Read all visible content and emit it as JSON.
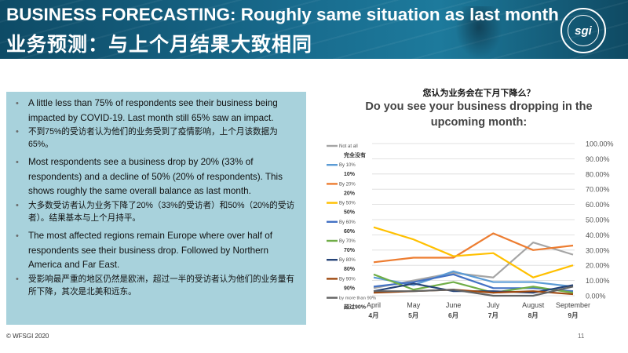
{
  "header": {
    "title_en": "BUSINESS FORECASTING: Roughly same situation as last month",
    "title_zh": "业务预测：与上个月结果大致相同",
    "logo_text": "sgi",
    "logo_icon": "wfsgi-globe-logo"
  },
  "bullets": [
    {
      "lang": "en",
      "text": "A little less than 75% of respondents see their business being impacted by COVID-19. Last month still 65% saw an impact."
    },
    {
      "lang": "zh",
      "text": "不到75%的受访者认为他们的业务受到了疫情影响，上个月该数据为65%。"
    },
    {
      "lang": "en",
      "text": "Most respondents see a business drop by 20% (33% of respondents) and a decline of 50% (20% of respondents). This shows roughly the same overall balance as last month."
    },
    {
      "lang": "zh",
      "text": "大多数受访者认为业务下降了20%（33%的受访者）和50%（20%的受访者）。结果基本与上个月持平。"
    },
    {
      "lang": "en",
      "text": "The most affected regions remain Europe where over half of respondents see their business drop. Followed by Northern America and Far East."
    },
    {
      "lang": "zh",
      "text": "受影响最严重的地区仍然是欧洲，超过一半的受访者认为他们的业务量有所下降，其次是北美和远东。"
    }
  ],
  "footer": "© WFSGI 2020",
  "page_number": "11",
  "chart_data": {
    "type": "line",
    "title_zh": "您认为业务会在下月下降么？",
    "title": "Do you see your business dropping in the upcoming month:",
    "categories": [
      "April",
      "May",
      "June",
      "July",
      "August",
      "September"
    ],
    "categories_zh": [
      "4月",
      "5月",
      "6月",
      "7月",
      "8月",
      "9月"
    ],
    "ylim": [
      0,
      100
    ],
    "yticks": [
      "0.00%",
      "10.00%",
      "20.00%",
      "30.00%",
      "40.00%",
      "50.00%",
      "60.00%",
      "70.00%",
      "80.00%",
      "90.00%",
      "100.00%"
    ],
    "grid": true,
    "legend_position": "left",
    "series": [
      {
        "name": "Not at all",
        "name_zh": "完全没有",
        "color": "#a5a5a5",
        "values": [
          5,
          10,
          15,
          12,
          35,
          27
        ]
      },
      {
        "name": "By 10%",
        "name_zh": "10%",
        "color": "#5b9bd5",
        "values": [
          12,
          7,
          16,
          9,
          9,
          6
        ]
      },
      {
        "name": "By 20%",
        "name_zh": "20%",
        "color": "#ed7d31",
        "values": [
          22,
          25,
          25,
          41,
          30,
          33
        ]
      },
      {
        "name": "By 50%",
        "name_zh": "50%",
        "color": "#ffc000",
        "values": [
          45,
          37,
          26,
          28,
          12,
          20
        ]
      },
      {
        "name": "By 60%",
        "name_zh": "60%",
        "color": "#4472c4",
        "values": [
          6,
          9,
          14,
          5,
          5,
          3
        ]
      },
      {
        "name": "By 70%",
        "name_zh": "70%",
        "color": "#70ad47",
        "values": [
          14,
          4,
          9,
          2,
          6,
          2
        ]
      },
      {
        "name": "By 80%",
        "name_zh": "80%",
        "color": "#264478",
        "values": [
          3,
          8,
          3,
          3,
          2,
          7
        ]
      },
      {
        "name": "By 90%",
        "name_zh": "90%",
        "color": "#9e480e",
        "values": [
          2,
          3,
          4,
          2,
          3,
          1
        ]
      },
      {
        "name": "by more than 90%",
        "name_zh": "超过90%",
        "color": "#636363",
        "values": [
          3,
          3,
          4,
          0,
          0,
          6
        ]
      }
    ]
  }
}
